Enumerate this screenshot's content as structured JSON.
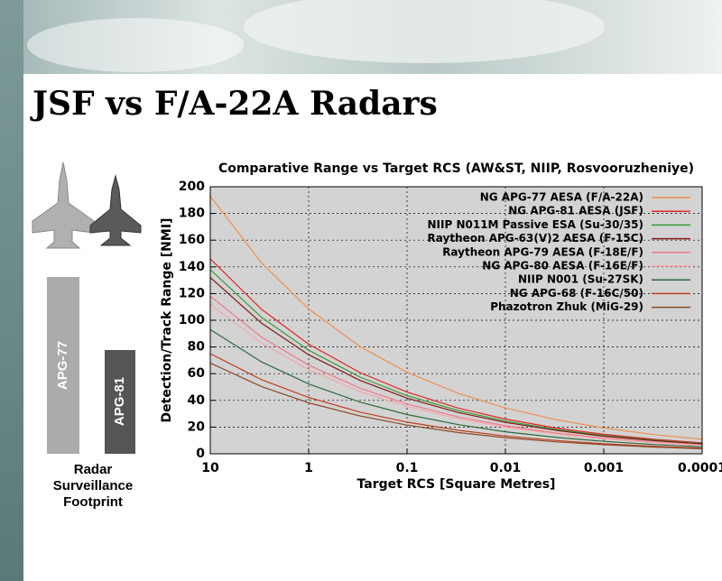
{
  "header": {
    "title": "JSF vs F/A-22A Radars"
  },
  "sidebar": {
    "bars": [
      "APG-77",
      "APG-81"
    ],
    "caption": [
      "Radar",
      "Surveillance",
      "Footprint"
    ]
  },
  "chart_data": {
    "type": "line",
    "title": "Comparative Range vs Target RCS (AW&ST, NIIP, Rosvooruzheniye)",
    "x_label": "Target RCS [Square Metres]",
    "y_label": "Detection/Track Range [NMI]",
    "x": [
      10,
      3,
      1,
      0.3,
      0.1,
      0.03,
      0.01,
      0.003,
      0.001,
      0.0003,
      0.0001
    ],
    "xlim": [
      10,
      0.0001
    ],
    "xscale": "log",
    "xticks": [
      10,
      1,
      0.1,
      0.01,
      0.001,
      0.0001
    ],
    "ylim": [
      0,
      200
    ],
    "yticks": [
      0,
      20,
      40,
      60,
      80,
      100,
      120,
      140,
      160,
      180,
      200
    ],
    "grid": true,
    "legend": "top-right",
    "series": [
      {
        "name": "NG APG-77 AESA (F/A-22A)",
        "color": "#f09050",
        "values": [
          193,
          142.8,
          108.5,
          80.3,
          61.0,
          45.2,
          34.3,
          25.4,
          19.3,
          14.3,
          10.9
        ]
      },
      {
        "name": "NG APG-81 AESA (JSF)",
        "color": "#e02828",
        "values": [
          146,
          108.1,
          82.1,
          60.8,
          46.2,
          34.2,
          26.0,
          19.2,
          14.6,
          10.8,
          8.2
        ]
      },
      {
        "name": "NIIP N011M Passive ESA (Su-30/35)",
        "color": "#3a9a3a",
        "values": [
          138,
          102.1,
          77.6,
          57.4,
          43.6,
          32.3,
          24.5,
          18.2,
          13.8,
          10.2,
          7.8
        ]
      },
      {
        "name": "Raytheon APG-63(V)2 AESA (F-15C)",
        "color": "#801818",
        "values": [
          132,
          97.7,
          74.2,
          54.9,
          41.7,
          30.9,
          23.5,
          17.4,
          13.2,
          9.8,
          7.4
        ]
      },
      {
        "name": "Raytheon APG-79 AESA (F-18E/F)",
        "color": "#f07a8a",
        "values": [
          118,
          87.3,
          66.4,
          49.1,
          37.3,
          27.6,
          21.0,
          15.5,
          11.8,
          8.7,
          6.6
        ]
      },
      {
        "name": "NG APG-80 AESA (F-16E/F)",
        "color": "#f4a8a8",
        "values": [
          112,
          82.9,
          63.0,
          46.6,
          35.4,
          26.2,
          19.9,
          14.7,
          11.2,
          8.3,
          6.3
        ]
      },
      {
        "name": "NIIP N001 (Su-27SK)",
        "color": "#2e6a3c",
        "values": [
          93,
          68.8,
          52.3,
          38.7,
          29.4,
          21.8,
          16.5,
          12.2,
          9.3,
          6.9,
          5.2
        ]
      },
      {
        "name": "NG APG-68 (F-16C/50)",
        "color": "#c04020",
        "values": [
          75,
          55.5,
          42.2,
          31.2,
          23.7,
          17.6,
          13.3,
          9.9,
          7.5,
          5.6,
          4.2
        ]
      },
      {
        "name": "Phazotron Zhuk (MiG-29)",
        "color": "#8a4a2a",
        "values": [
          68,
          50.3,
          38.2,
          28.3,
          21.5,
          15.9,
          12.1,
          8.9,
          6.8,
          5.0,
          3.8
        ]
      }
    ]
  }
}
